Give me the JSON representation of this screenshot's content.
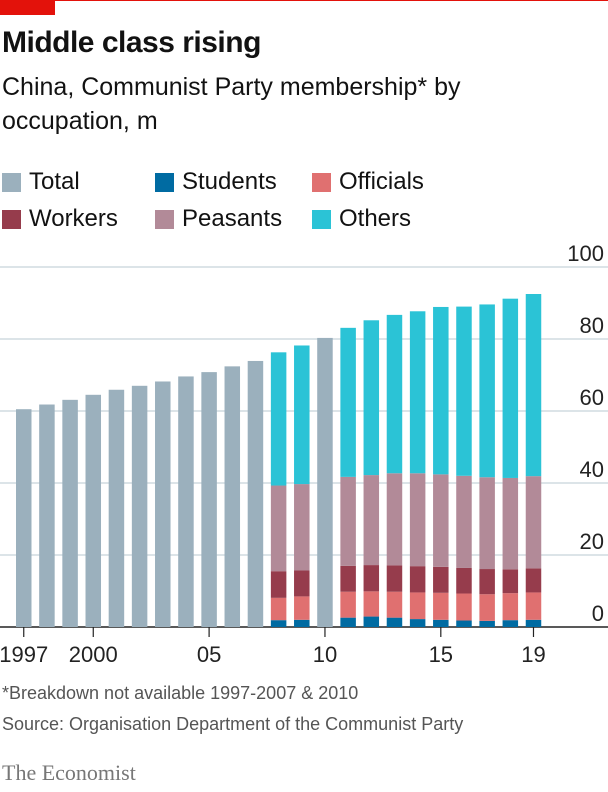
{
  "header": {
    "title": "Middle class rising",
    "subtitle": "China, Communist Party membership* by occupation, m"
  },
  "legend": [
    {
      "label": "Total",
      "color": "#9bb0bd"
    },
    {
      "label": "Students",
      "color": "#006ba2"
    },
    {
      "label": "Officials",
      "color": "#e07070"
    },
    {
      "label": "Workers",
      "color": "#963c4c"
    },
    {
      "label": "Peasants",
      "color": "#b28a98"
    },
    {
      "label": "Others",
      "color": "#2bc3d6"
    }
  ],
  "footer": {
    "note": "*Breakdown not available 1997-2007 & 2010",
    "source": "Source: Organisation Department of the Communist Party",
    "brand": "The Economist"
  },
  "chart_data": {
    "type": "bar",
    "stacked": true,
    "categories": [
      "1997",
      "1998",
      "1999",
      "2000",
      "2001",
      "2002",
      "2003",
      "2004",
      "2005",
      "2006",
      "2007",
      "2008",
      "2009",
      "2010",
      "2011",
      "2012",
      "2013",
      "2014",
      "2015",
      "2016",
      "2017",
      "2018",
      "2019"
    ],
    "tick_labels": [
      "1997",
      "2000",
      "05",
      "10",
      "15",
      "19"
    ],
    "tick_years": [
      "1997",
      "2000",
      "2005",
      "2010",
      "2015",
      "2019"
    ],
    "ylim": [
      0,
      100
    ],
    "yticks": [
      0,
      20,
      40,
      60,
      80,
      100
    ],
    "grid": true,
    "legend_position": "top",
    "series": [
      {
        "name": "Total",
        "color": "#9bb0bd",
        "values": [
          60.5,
          61.8,
          63.1,
          64.5,
          65.9,
          67.0,
          68.2,
          69.6,
          70.8,
          72.4,
          73.9,
          null,
          null,
          80.3,
          null,
          null,
          null,
          null,
          null,
          null,
          null,
          null,
          null
        ]
      },
      {
        "name": "Students",
        "color": "#006ba2",
        "values": [
          null,
          null,
          null,
          null,
          null,
          null,
          null,
          null,
          null,
          null,
          null,
          1.9,
          2.0,
          null,
          2.6,
          2.9,
          2.6,
          2.2,
          2.0,
          1.8,
          1.7,
          1.9,
          2.0
        ]
      },
      {
        "name": "Officials",
        "color": "#e07070",
        "values": [
          null,
          null,
          null,
          null,
          null,
          null,
          null,
          null,
          null,
          null,
          null,
          6.2,
          6.5,
          null,
          7.2,
          7.0,
          7.2,
          7.4,
          7.5,
          7.5,
          7.4,
          7.5,
          7.6
        ]
      },
      {
        "name": "Workers",
        "color": "#963c4c",
        "values": [
          null,
          null,
          null,
          null,
          null,
          null,
          null,
          null,
          null,
          null,
          null,
          7.4,
          7.2,
          null,
          7.2,
          7.3,
          7.3,
          7.3,
          7.2,
          7.1,
          7.0,
          6.6,
          6.7
        ]
      },
      {
        "name": "Peasants",
        "color": "#b28a98",
        "values": [
          null,
          null,
          null,
          null,
          null,
          null,
          null,
          null,
          null,
          null,
          null,
          23.8,
          24.0,
          null,
          24.7,
          25.0,
          25.6,
          25.8,
          25.7,
          25.6,
          25.5,
          25.4,
          25.6
        ]
      },
      {
        "name": "Others",
        "color": "#2bc3d6",
        "values": [
          null,
          null,
          null,
          null,
          null,
          null,
          null,
          null,
          null,
          null,
          null,
          37.0,
          38.5,
          null,
          41.4,
          43.0,
          44.0,
          45.0,
          46.5,
          47.0,
          48.0,
          49.8,
          50.6
        ]
      }
    ]
  }
}
